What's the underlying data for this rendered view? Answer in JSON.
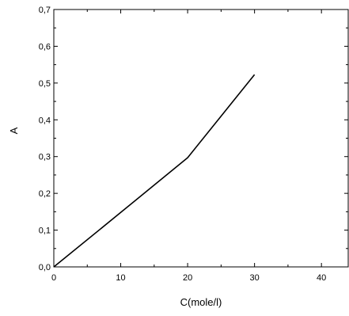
{
  "chart_data": {
    "type": "line",
    "title": "",
    "xlabel": "C(mole/l)",
    "ylabel": "A",
    "xlim": [
      0,
      44
    ],
    "ylim": [
      0,
      0.7
    ],
    "x_ticks": [
      {
        "value": 0,
        "label": "0"
      },
      {
        "value": 10,
        "label": "10"
      },
      {
        "value": 20,
        "label": "20"
      },
      {
        "value": 30,
        "label": "30"
      },
      {
        "value": 40,
        "label": "40"
      }
    ],
    "y_ticks": [
      {
        "value": 0.0,
        "label": "0,0"
      },
      {
        "value": 0.1,
        "label": "0,1"
      },
      {
        "value": 0.2,
        "label": "0,2"
      },
      {
        "value": 0.3,
        "label": "0,3"
      },
      {
        "value": 0.4,
        "label": "0,4"
      },
      {
        "value": 0.5,
        "label": "0,5"
      },
      {
        "value": 0.6,
        "label": "0,6"
      },
      {
        "value": 0.7,
        "label": "0,7"
      }
    ],
    "grid": false,
    "legend": "none",
    "series": [
      {
        "x": [
          0,
          10,
          20,
          25,
          30
        ],
        "y": [
          0.0,
          0.148,
          0.297,
          0.41,
          0.523
        ],
        "color": "#000000"
      }
    ]
  }
}
